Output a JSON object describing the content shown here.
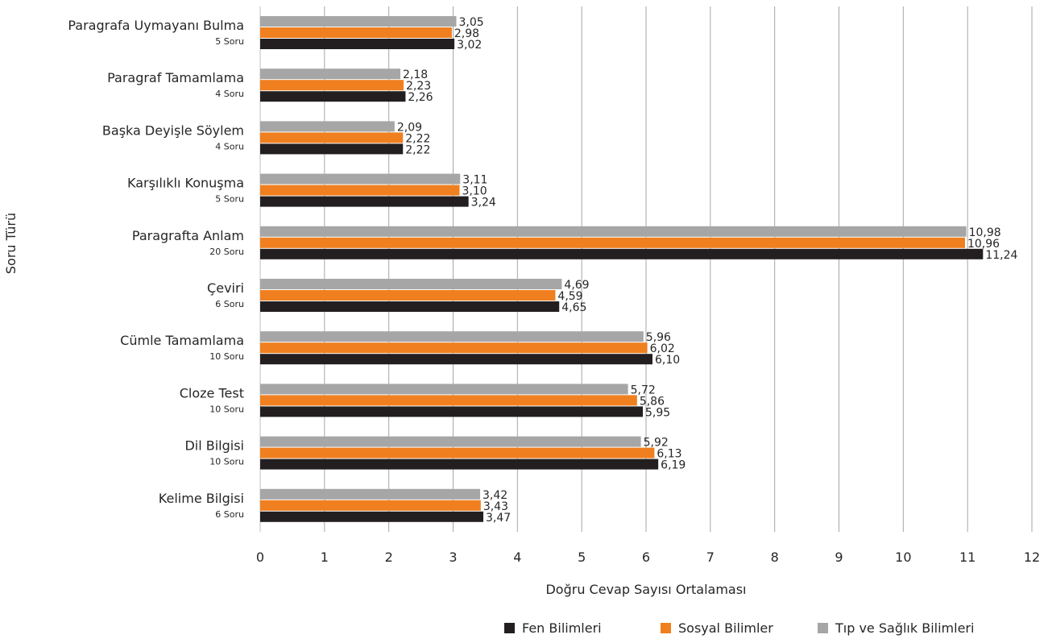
{
  "chart_data": {
    "type": "bar",
    "orientation": "horizontal",
    "xlabel": "Doğru Cevap Sayısı Ortalaması",
    "ylabel": "Soru Türü",
    "xlim": [
      0,
      12
    ],
    "xticks": [
      "0",
      "1",
      "2",
      "3",
      "4",
      "5",
      "6",
      "7",
      "8",
      "9",
      "10",
      "11",
      "12"
    ],
    "grid": "vertical",
    "legend_position": "bottom-right",
    "categories": [
      {
        "name": "Paragrafa Uymayanı Bulma",
        "sub": "5 Soru"
      },
      {
        "name": "Paragraf Tamamlama",
        "sub": "4 Soru"
      },
      {
        "name": "Başka Deyişle Söylem",
        "sub": "4 Soru"
      },
      {
        "name": "Karşılıklı Konuşma",
        "sub": "5 Soru"
      },
      {
        "name": "Paragrafta Anlam",
        "sub": "20 Soru"
      },
      {
        "name": "Çeviri",
        "sub": "6 Soru"
      },
      {
        "name": "Cümle Tamamlama",
        "sub": "10 Soru"
      },
      {
        "name": "Cloze Test",
        "sub": "10 Soru"
      },
      {
        "name": "Dil Bilgisi",
        "sub": "10 Soru"
      },
      {
        "name": "Kelime Bilgisi",
        "sub": "6 Soru"
      }
    ],
    "series": [
      {
        "name": "Tıp ve Sağlık Bilimleri",
        "color": "#a6a6a6",
        "values": [
          3.05,
          2.18,
          2.09,
          3.11,
          10.98,
          4.69,
          5.96,
          5.72,
          5.92,
          3.42
        ],
        "labels": [
          "3,05",
          "2,18",
          "2,09",
          "3,11",
          "10,98",
          "4,69",
          "5,96",
          "5,72",
          "5,92",
          "3,42"
        ]
      },
      {
        "name": "Sosyal Bilimler",
        "color": "#f07f1f",
        "values": [
          2.98,
          2.23,
          2.22,
          3.1,
          10.96,
          4.59,
          6.02,
          5.86,
          6.13,
          3.43
        ],
        "labels": [
          "2,98",
          "2,23",
          "2,22",
          "3,10",
          "10,96",
          "4,59",
          "6,02",
          "5,86",
          "6,13",
          "3,43"
        ]
      },
      {
        "name": "Fen Bilimleri",
        "color": "#231f20",
        "values": [
          3.02,
          2.26,
          2.22,
          3.24,
          11.24,
          4.65,
          6.1,
          5.95,
          6.19,
          3.47
        ],
        "labels": [
          "3,02",
          "2,26",
          "2,22",
          "3,24",
          "11,24",
          "4,65",
          "6,10",
          "5,95",
          "6,19",
          "3,47"
        ]
      }
    ],
    "legend": [
      {
        "name": "Fen Bilimleri",
        "color": "#231f20"
      },
      {
        "name": "Sosyal Bilimler",
        "color": "#f07f1f"
      },
      {
        "name": "Tıp ve Sağlık Bilimleri",
        "color": "#a6a6a6"
      }
    ]
  }
}
